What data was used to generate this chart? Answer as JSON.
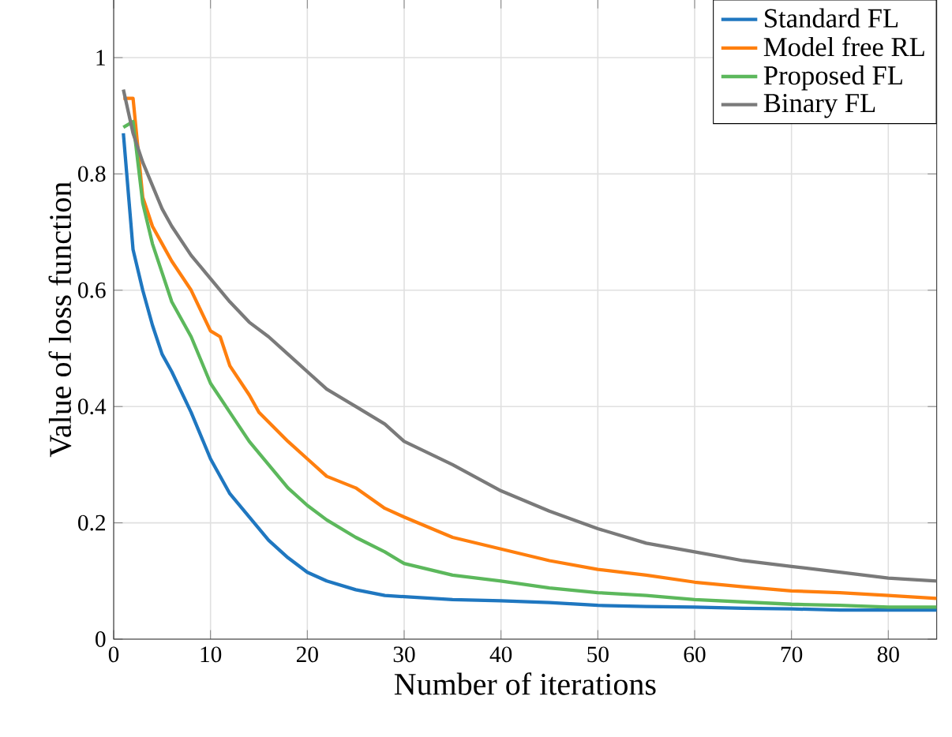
{
  "chart_data": {
    "type": "line",
    "xlabel": "Number of iterations",
    "ylabel": "Value of loss function",
    "xlim": [
      0,
      85
    ],
    "ylim": [
      0,
      1.1
    ],
    "xticks": [
      0,
      10,
      20,
      30,
      40,
      50,
      60,
      70,
      80
    ],
    "yticks": [
      0,
      0.2,
      0.4,
      0.6,
      0.8,
      1
    ],
    "grid": true,
    "legend": "top right",
    "line_style": "solid",
    "marker": "none",
    "series": [
      {
        "name": "Standard FL",
        "color": "#1f77c0",
        "x": [
          1,
          2,
          3,
          4,
          5,
          6,
          8,
          10,
          12,
          14,
          16,
          18,
          20,
          22,
          25,
          28,
          30,
          35,
          40,
          45,
          50,
          55,
          60,
          65,
          70,
          75,
          80,
          85
        ],
        "values": [
          0.87,
          0.67,
          0.6,
          0.54,
          0.49,
          0.46,
          0.39,
          0.31,
          0.25,
          0.21,
          0.17,
          0.14,
          0.115,
          0.1,
          0.085,
          0.075,
          0.073,
          0.068,
          0.066,
          0.063,
          0.058,
          0.056,
          0.055,
          0.053,
          0.052,
          0.05,
          0.05,
          0.05
        ]
      },
      {
        "name": "Model free RL",
        "color": "#ff7f0e",
        "x": [
          1,
          2,
          3,
          4,
          5,
          6,
          8,
          10,
          11,
          12,
          14,
          15,
          18,
          20,
          22,
          25,
          28,
          30,
          35,
          40,
          45,
          50,
          55,
          60,
          65,
          70,
          75,
          80,
          85
        ],
        "values": [
          0.93,
          0.93,
          0.76,
          0.71,
          0.68,
          0.65,
          0.6,
          0.53,
          0.52,
          0.47,
          0.42,
          0.39,
          0.34,
          0.31,
          0.28,
          0.26,
          0.225,
          0.21,
          0.175,
          0.155,
          0.135,
          0.12,
          0.11,
          0.098,
          0.09,
          0.083,
          0.08,
          0.075,
          0.07
        ]
      },
      {
        "name": "Proposed FL",
        "color": "#5cb85c",
        "x": [
          1,
          2,
          3,
          4,
          5,
          6,
          8,
          10,
          12,
          14,
          16,
          18,
          20,
          22,
          25,
          28,
          30,
          35,
          40,
          45,
          50,
          55,
          60,
          65,
          70,
          75,
          80,
          85
        ],
        "values": [
          0.88,
          0.89,
          0.75,
          0.68,
          0.63,
          0.58,
          0.52,
          0.44,
          0.39,
          0.34,
          0.3,
          0.26,
          0.23,
          0.205,
          0.175,
          0.15,
          0.13,
          0.11,
          0.1,
          0.088,
          0.08,
          0.075,
          0.068,
          0.064,
          0.06,
          0.058,
          0.055,
          0.055
        ]
      },
      {
        "name": "Binary FL",
        "color": "#7a7a7a",
        "x": [
          1,
          2,
          3,
          4,
          5,
          6,
          8,
          10,
          12,
          14,
          16,
          18,
          20,
          22,
          25,
          28,
          30,
          35,
          40,
          45,
          50,
          55,
          60,
          65,
          70,
          75,
          80,
          85
        ],
        "values": [
          0.945,
          0.87,
          0.82,
          0.78,
          0.74,
          0.71,
          0.66,
          0.62,
          0.58,
          0.545,
          0.52,
          0.49,
          0.46,
          0.43,
          0.4,
          0.37,
          0.34,
          0.3,
          0.255,
          0.22,
          0.19,
          0.165,
          0.15,
          0.135,
          0.125,
          0.115,
          0.105,
          0.1
        ]
      }
    ]
  }
}
